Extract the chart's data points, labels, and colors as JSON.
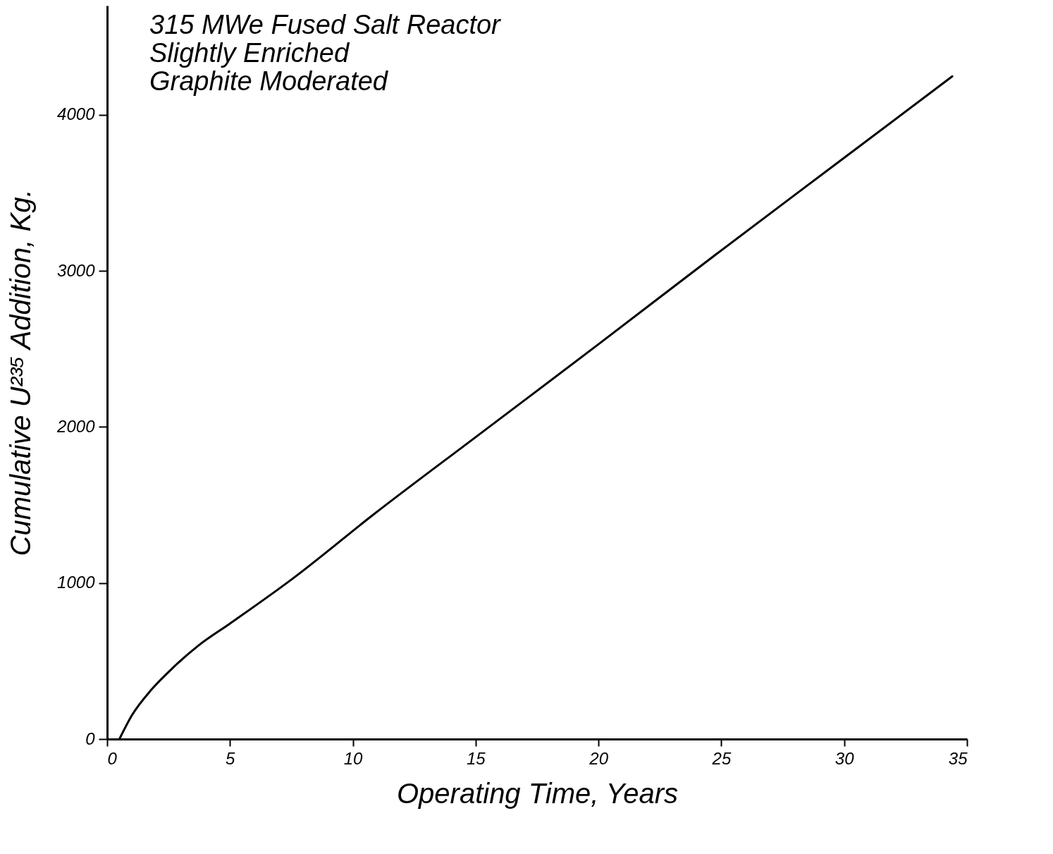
{
  "chart_data": {
    "type": "line",
    "xlabel": "Operating Time, Years",
    "ylabel": "Cumulative U²³⁵ Addition, Kg.",
    "annotations": [
      "315 MWe  Fused Salt Reactor",
      "Slightly Enriched",
      "Graphite Moderated"
    ],
    "x": [
      0.5,
      1,
      1.8,
      2.7,
      3.7,
      5,
      7.5,
      10.9,
      15,
      20,
      24.8,
      30,
      34.4
    ],
    "series": [
      {
        "color": "#000000",
        "values": [
          0,
          150,
          316,
          460,
          597,
          740,
          1022,
          1446,
          1935,
          2530,
          3108,
          3725,
          4247
        ]
      }
    ],
    "xlim": [
      0,
      35
    ],
    "xticks": [
      0,
      5,
      10,
      15,
      20,
      25,
      30,
      35
    ],
    "ylim": [
      0,
      4700
    ],
    "yticks": [
      0,
      1000,
      2000,
      3000,
      4000
    ],
    "grid": false,
    "legend": false,
    "marker": "none",
    "line_style": "solid"
  }
}
